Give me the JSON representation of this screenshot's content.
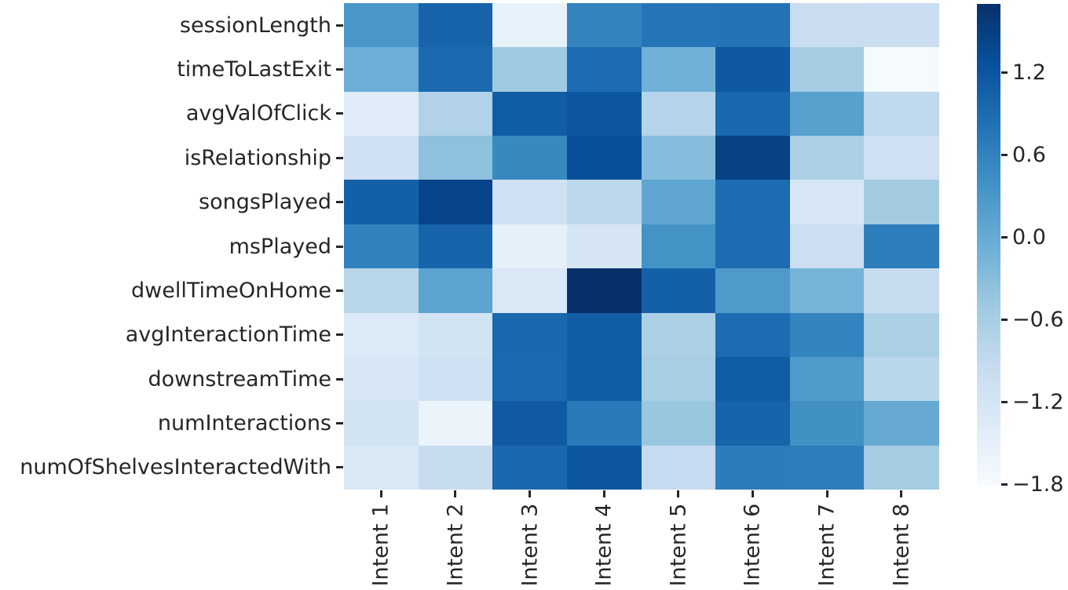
{
  "figure": {
    "background": "#ffffff",
    "text_color": "#262626"
  },
  "chart_data": {
    "type": "heatmap",
    "title": "",
    "xlabel": "",
    "ylabel": "",
    "colormap": "Blues",
    "grid": false,
    "rows": [
      "sessionLength",
      "timeToLastExit",
      "avgValOfClick",
      "isRelationship",
      "songsPlayed",
      "msPlayed",
      "dwellTimeOnHome",
      "avgInteractionTime",
      "downstreamTime",
      "numInteractions",
      "numOfShelvesInteractedWith"
    ],
    "columns": [
      "Intent 1",
      "Intent 2",
      "Intent 3",
      "Intent 4",
      "Intent 5",
      "Intent 6",
      "Intent 7",
      "Intent 8"
    ],
    "values": [
      [
        0.3,
        1.0,
        -1.55,
        0.58,
        0.78,
        0.8,
        -1.0,
        -1.02
      ],
      [
        -0.05,
        0.92,
        -0.5,
        0.9,
        -0.1,
        1.15,
        -0.58,
        -1.78
      ],
      [
        -1.4,
        -0.7,
        1.1,
        1.18,
        -0.75,
        0.95,
        0.15,
        -0.85
      ],
      [
        -1.1,
        -0.35,
        0.5,
        1.28,
        -0.28,
        1.48,
        -0.65,
        -1.08
      ],
      [
        1.05,
        1.43,
        -1.1,
        -0.83,
        0.08,
        0.9,
        -1.25,
        -0.55
      ],
      [
        0.6,
        1.0,
        -1.5,
        -1.2,
        0.37,
        0.9,
        -1.05,
        0.65
      ],
      [
        -0.8,
        0.12,
        -1.3,
        1.7,
        1.05,
        0.26,
        -0.15,
        -0.95
      ],
      [
        -1.35,
        -1.15,
        0.95,
        1.08,
        -0.64,
        0.9,
        0.57,
        -0.64
      ],
      [
        -1.25,
        -1.1,
        0.93,
        1.1,
        -0.6,
        1.1,
        0.24,
        -0.8
      ],
      [
        -1.15,
        -1.6,
        1.14,
        0.7,
        -0.45,
        1.0,
        0.4,
        0.0
      ],
      [
        -1.3,
        -0.95,
        0.95,
        1.18,
        -0.93,
        0.68,
        0.66,
        -0.58
      ]
    ],
    "vmin": -1.81,
    "vmax": 1.7,
    "colorbar": {
      "position": "right",
      "tick_values": [
        1.2,
        0.6,
        0.0,
        -0.6,
        -1.2,
        -1.8
      ],
      "tick_labels": [
        "1.2",
        "0.6",
        "0.0",
        "−0.6",
        "−1.2",
        "−1.8"
      ]
    }
  }
}
